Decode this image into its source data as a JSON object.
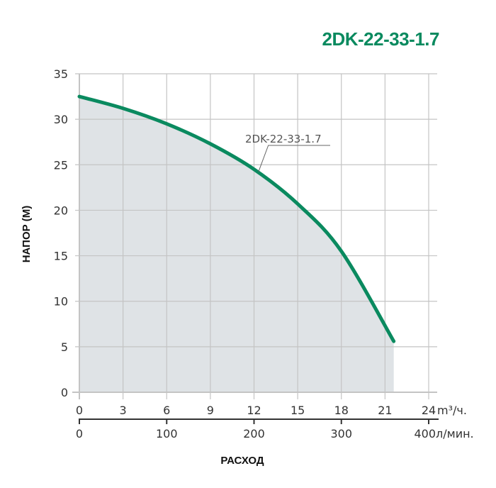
{
  "header": {
    "title": "2DK-22-33-1.7"
  },
  "chart_data": {
    "type": "line",
    "title": "2DK-22-33-1.7",
    "xlabel": "РАСХОД",
    "ylabel": "НАПОР (М)",
    "x_unit_primary": "m³/ч.",
    "x_unit_secondary": "л/мин.",
    "xlim": [
      0,
      24
    ],
    "ylim": [
      0,
      35
    ],
    "x_ticks": [
      0,
      3,
      6,
      9,
      12,
      15,
      18,
      21,
      24
    ],
    "x_ticks_secondary": [
      0,
      100,
      200,
      300,
      400
    ],
    "y_ticks": [
      0,
      5,
      10,
      15,
      20,
      25,
      30,
      35
    ],
    "grid": true,
    "fill_under_curve": true,
    "series": [
      {
        "name": "2DK-22-33-1.7",
        "color": "#0a8a5f",
        "x": [
          0,
          3,
          6,
          9,
          12,
          15,
          18,
          21.6
        ],
        "y": [
          32.5,
          31.2,
          29.5,
          27.3,
          24.5,
          20.7,
          15.5,
          5.6
        ]
      }
    ],
    "annotation": {
      "text": "2DK-22-33-1.7",
      "x": 12.3,
      "y": 24.2
    }
  },
  "colors": {
    "accent": "#0a8a5f",
    "fill": "#dfe3e6",
    "grid": "#c4c4c4"
  }
}
